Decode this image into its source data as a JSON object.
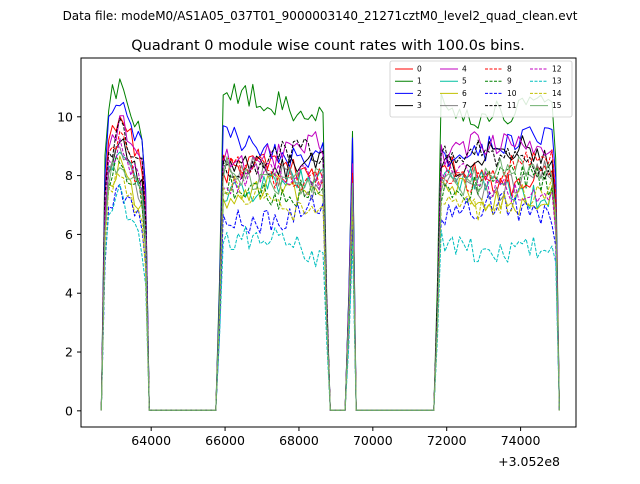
{
  "figure": {
    "suptitle": "Data file: modeM0/AS1A05_037T01_9000003140_21271cztM0_level2_quad_clean.evt",
    "offset_label": "+3.052e8"
  },
  "chart_data": {
    "type": "line",
    "title": "Quadrant 0 module wise count rates with 100.0s bins.",
    "xlabel": "",
    "ylabel": "",
    "xlim": [
      62100,
      75500
    ],
    "ylim": [
      -0.55,
      12.0
    ],
    "x_offset": 305200000,
    "xticks": [
      64000,
      66000,
      68000,
      70000,
      72000,
      74000
    ],
    "xtick_labels": [
      "64000",
      "66000",
      "68000",
      "70000",
      "72000",
      "74000"
    ],
    "yticks": [
      0,
      2,
      4,
      6,
      8,
      10
    ],
    "ytick_labels": [
      "0",
      "2",
      "4",
      "6",
      "8",
      "10"
    ],
    "grid": false,
    "legend_position": "upper-right",
    "legend_columns": 4,
    "bin_seconds": 100,
    "segments": [
      {
        "start": 62650,
        "end": 63950,
        "peak_at": 63150
      },
      {
        "start": 65800,
        "end": 68800,
        "peak_at": null
      },
      {
        "start": 69300,
        "end": 69550,
        "peak_at": 69450
      },
      {
        "start": 71700,
        "end": 75050,
        "peak_at": null
      }
    ],
    "series": [
      {
        "name": "0",
        "color": "#ff0000",
        "dash": "solid",
        "level": 8.1,
        "peak": 9.8
      },
      {
        "name": "1",
        "color": "#008000",
        "dash": "solid",
        "level": 10.4,
        "peak": 11.2
      },
      {
        "name": "2",
        "color": "#0000ff",
        "dash": "solid",
        "level": 9.0,
        "peak": 10.9
      },
      {
        "name": "3",
        "color": "#000000",
        "dash": "solid",
        "level": 8.6,
        "peak": 9.4
      },
      {
        "name": "4",
        "color": "#c000c0",
        "dash": "solid",
        "level": 8.8,
        "peak": 9.8
      },
      {
        "name": "5",
        "color": "#00bfa0",
        "dash": "solid",
        "level": 7.6,
        "peak": 8.6
      },
      {
        "name": "6",
        "color": "#c0c000",
        "dash": "solid",
        "level": 7.3,
        "peak": 8.2
      },
      {
        "name": "7",
        "color": "#808080",
        "dash": "solid",
        "level": 7.9,
        "peak": 8.8
      },
      {
        "name": "8",
        "color": "#ff0000",
        "dash": "dashed",
        "level": 8.2,
        "peak": 9.5
      },
      {
        "name": "9",
        "color": "#008000",
        "dash": "dashed",
        "level": 7.6,
        "peak": 8.9
      },
      {
        "name": "10",
        "color": "#0000ff",
        "dash": "dashed",
        "level": 6.7,
        "peak": 7.6
      },
      {
        "name": "11",
        "color": "#000000",
        "dash": "dashed",
        "level": 8.5,
        "peak": 9.4
      },
      {
        "name": "12",
        "color": "#c000c0",
        "dash": "dashed",
        "level": 7.8,
        "peak": 8.8
      },
      {
        "name": "13",
        "color": "#00bfbf",
        "dash": "dashed",
        "level": 5.6,
        "peak": 7.1
      },
      {
        "name": "14",
        "color": "#c0c000",
        "dash": "dashed",
        "level": 7.2,
        "peak": 8.1
      },
      {
        "name": "15",
        "color": "#70b070",
        "dash": "solid",
        "level": 8.0,
        "peak": 8.9
      }
    ]
  }
}
